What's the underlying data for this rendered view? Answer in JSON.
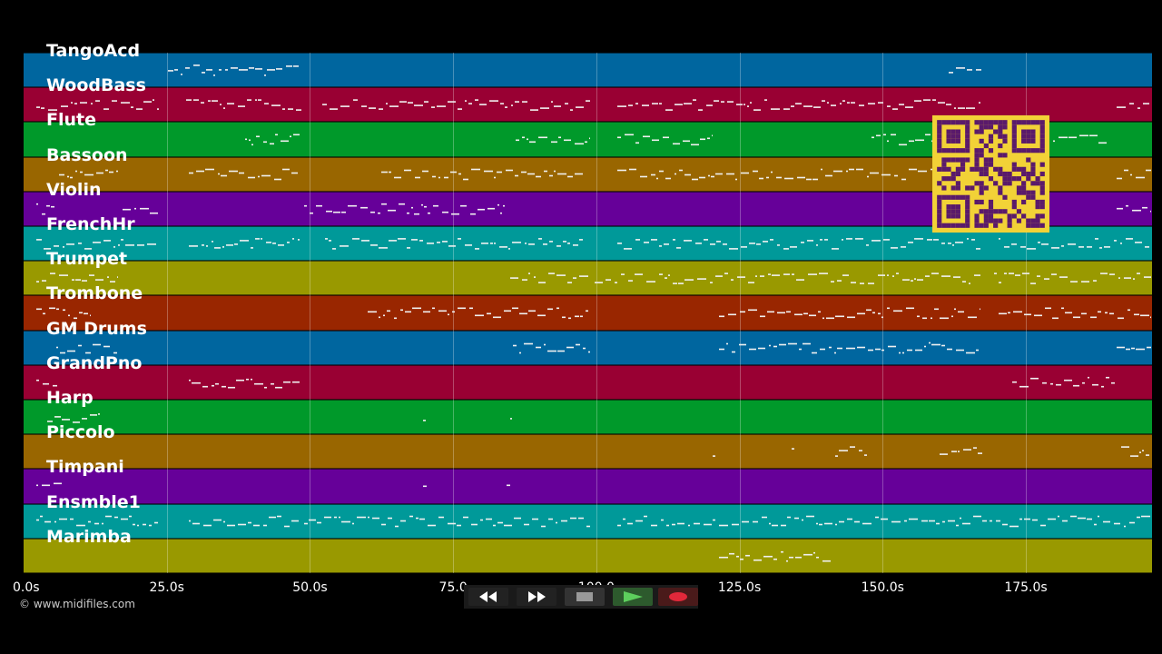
{
  "tracks": [
    {
      "name": "TangoAcd",
      "color": "#00669f"
    },
    {
      "name": "WoodBass",
      "color": "#990033"
    },
    {
      "name": "Flute",
      "color": "#00992a"
    },
    {
      "name": "Bassoon",
      "color": "#996600"
    },
    {
      "name": "Violin",
      "color": "#660099"
    },
    {
      "name": "FrenchHr",
      "color": "#009999"
    },
    {
      "name": "Trumpet",
      "color": "#999900"
    },
    {
      "name": "Trombone",
      "color": "#992600"
    },
    {
      "name": "GM Drums",
      "color": "#00669f"
    },
    {
      "name": "GrandPno",
      "color": "#990033"
    },
    {
      "name": "Harp",
      "color": "#00992a"
    },
    {
      "name": "Piccolo",
      "color": "#996600"
    },
    {
      "name": "Timpani",
      "color": "#660099"
    },
    {
      "name": "Ensmble1",
      "color": "#009999"
    },
    {
      "name": "Marimba",
      "color": "#999900"
    }
  ],
  "time_axis": {
    "ticks": [
      "0.0s",
      "25.0s",
      "50.0s",
      "75.0",
      "100.0",
      "125.0s",
      "150.0s",
      "175.0s"
    ],
    "tick_values": [
      0,
      25,
      50,
      75,
      100,
      125,
      150,
      175
    ]
  },
  "credit": "© www.midifiles.com",
  "transport": {
    "rewind_icon": "rewind-icon",
    "fast_forward_icon": "fast-forward-icon",
    "stop_icon": "stop-icon",
    "play_icon": "play-icon",
    "record_icon": "record-icon"
  },
  "qr_icon": "qr-code-icon"
}
